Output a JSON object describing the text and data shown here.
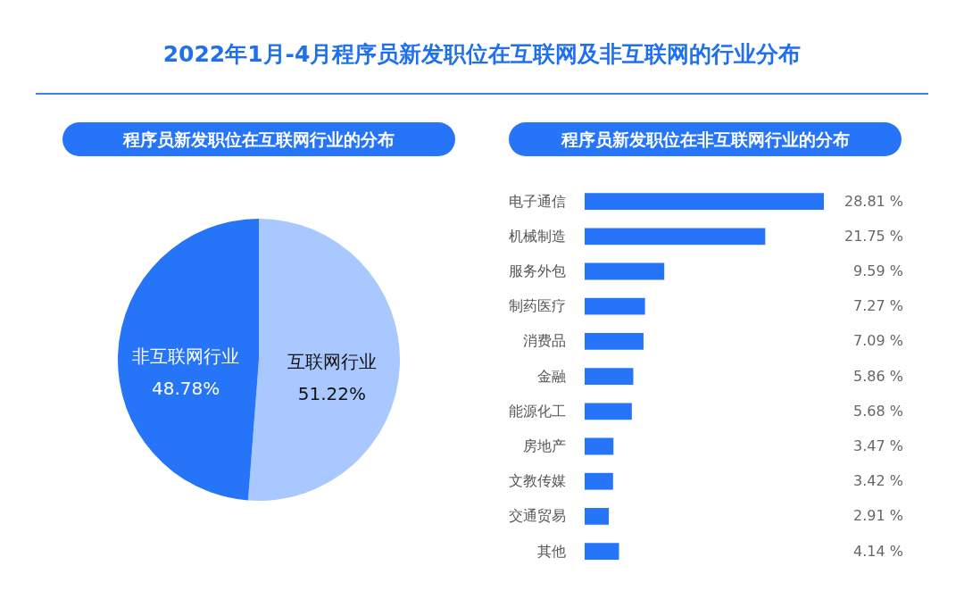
{
  "chart_data": [
    {
      "type": "pie",
      "title": "2022年1月-4月程序员新发职位在互联网及非互联网的行业分布",
      "subtitle": "程序员新发职位在互联网行业的分布",
      "categories": [
        "互联网行业",
        "非互联网行业"
      ],
      "values": [
        51.22,
        48.78
      ],
      "colors": [
        "#a9c8ff",
        "#2674f8"
      ],
      "value_labels": [
        "51.22%",
        "48.78%"
      ]
    },
    {
      "type": "bar",
      "orientation": "horizontal",
      "title": "程序员新发职位在非互联网行业的分布",
      "categories": [
        "电子通信",
        "机械制造",
        "服务外包",
        "制药医疗",
        "消费品",
        "金融",
        "能源化工",
        "房地产",
        "文教传媒",
        "交通贸易",
        "其他"
      ],
      "values": [
        28.81,
        21.75,
        9.59,
        7.27,
        7.09,
        5.86,
        5.68,
        3.47,
        3.42,
        2.91,
        4.14
      ],
      "color": "#2674f8",
      "value_labels": [
        "28.81 %",
        "21.75 %",
        "9.59 %",
        "7.27 %",
        "7.09 %",
        "5.86 %",
        "5.68 %",
        "3.47 %",
        "3.42 %",
        "2.91 %",
        "4.14 %"
      ]
    }
  ]
}
